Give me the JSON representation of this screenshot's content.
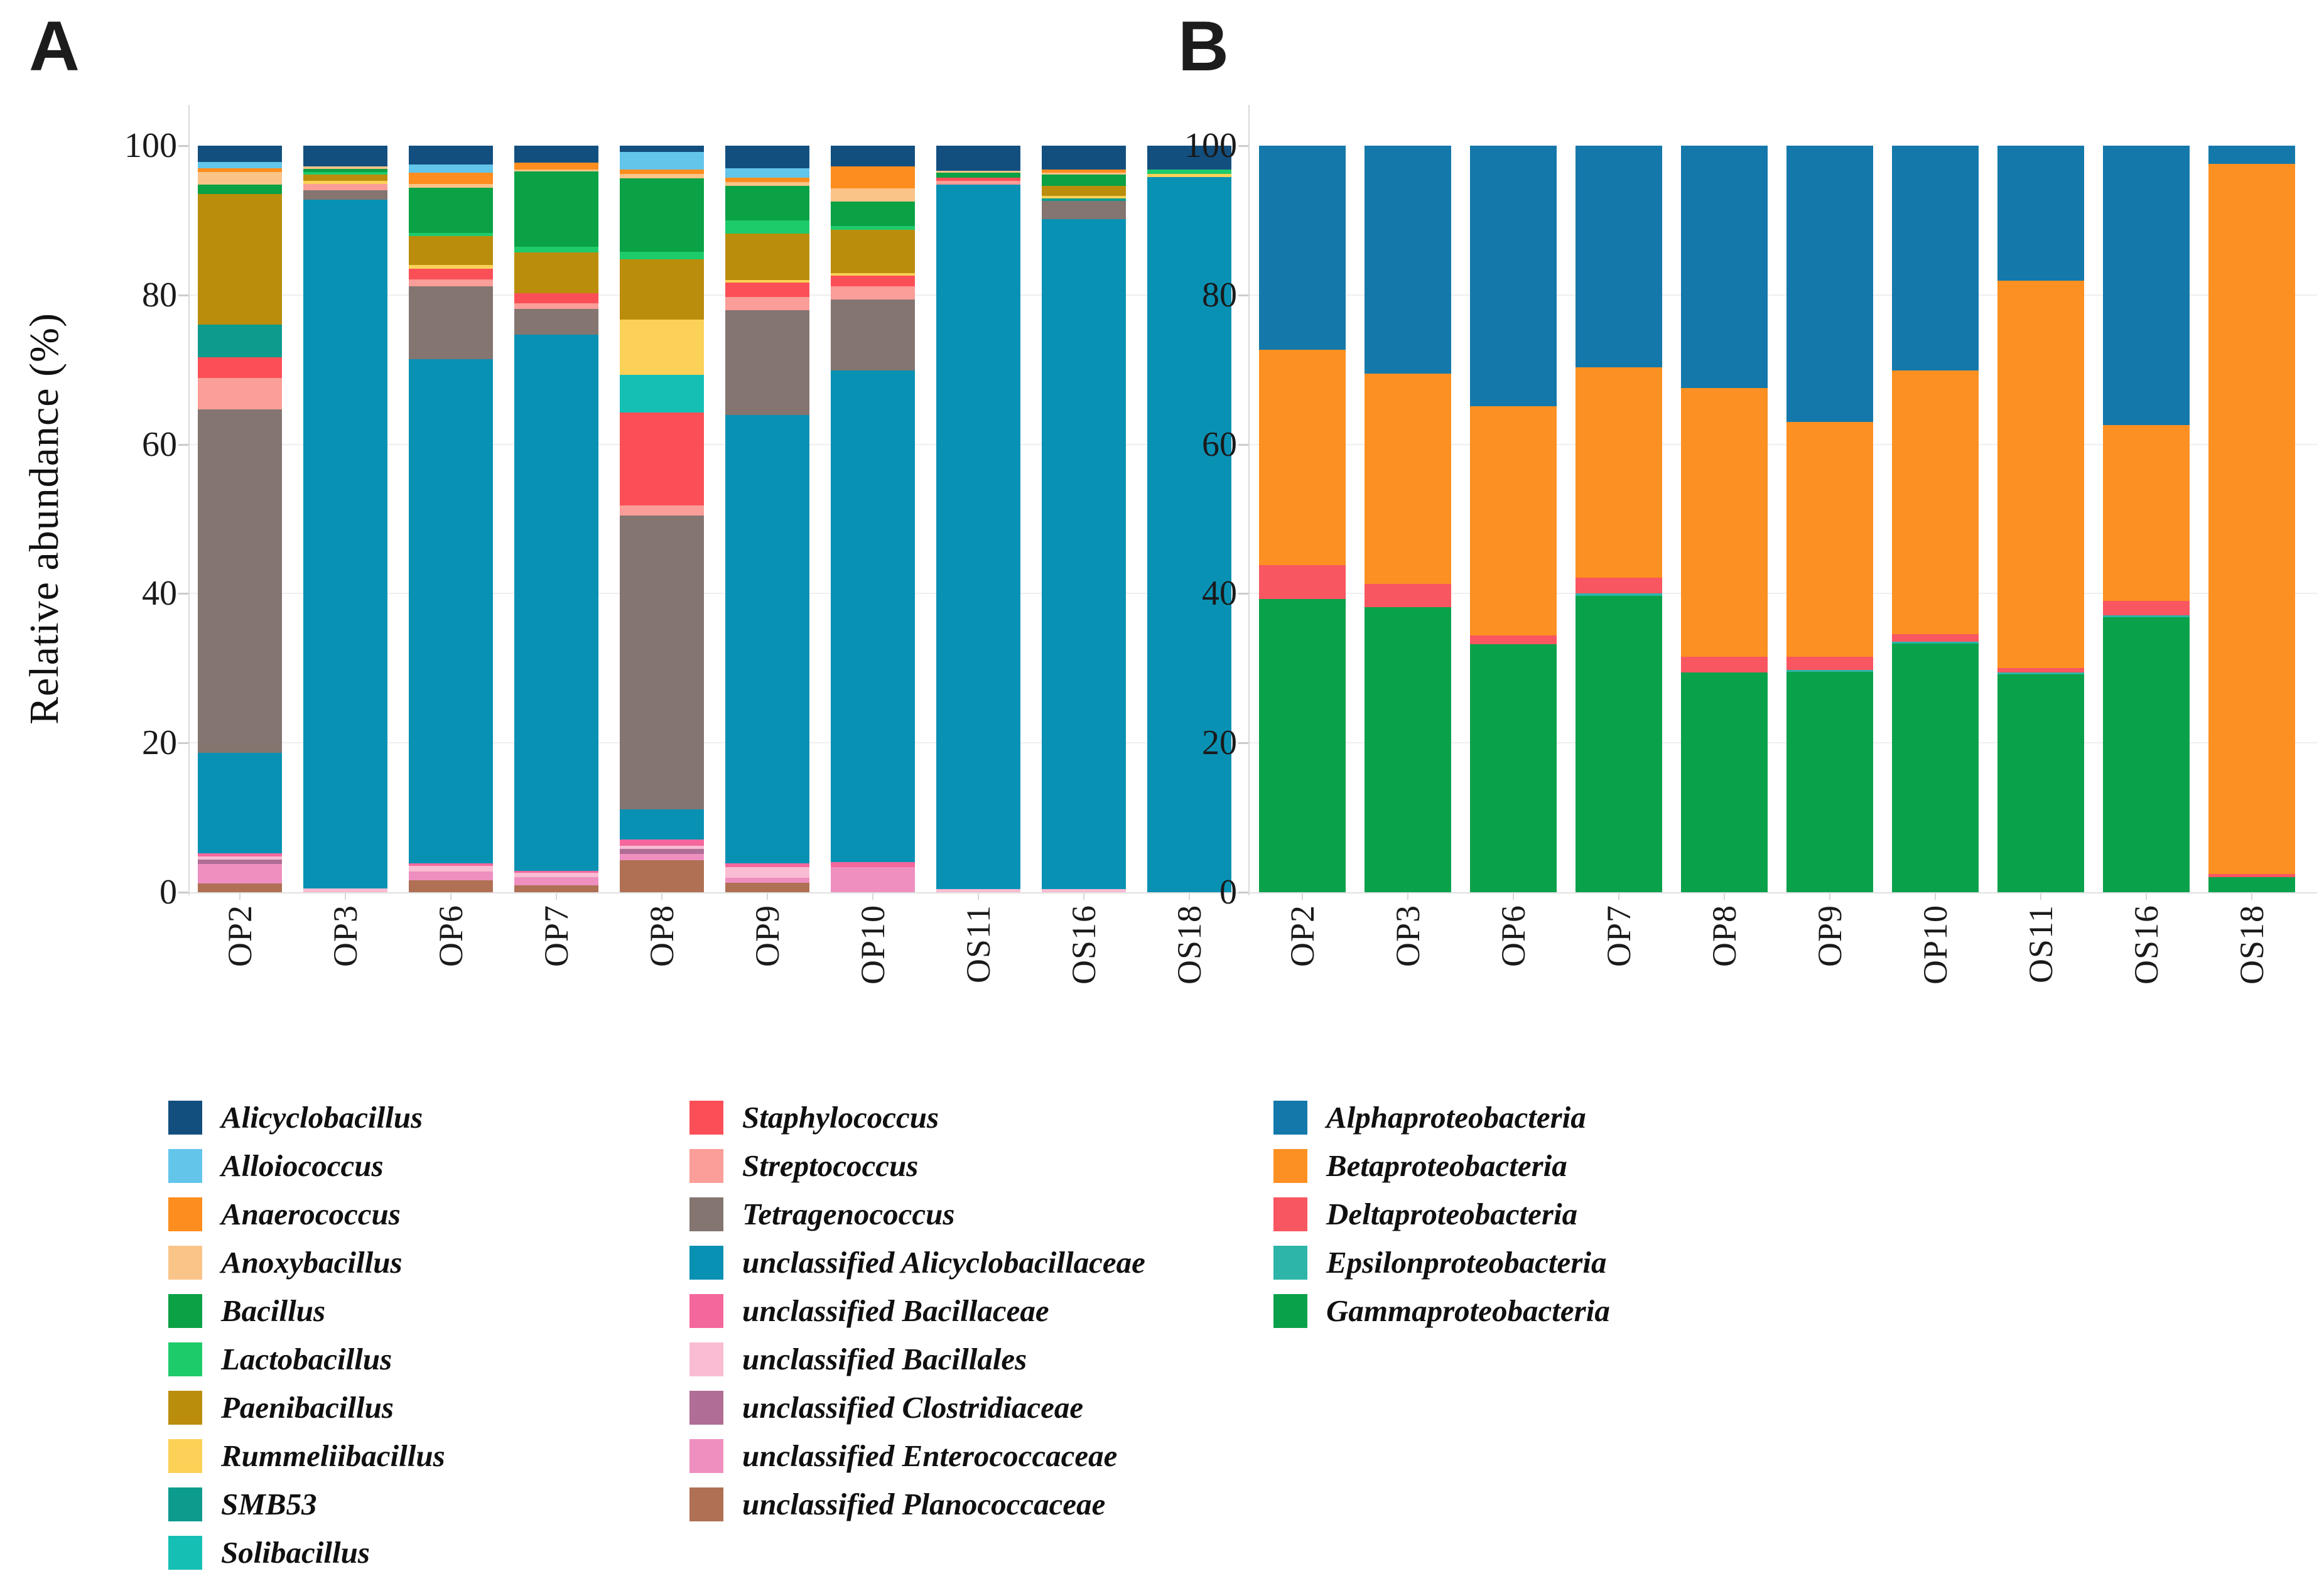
{
  "ui": {
    "panel_a_letter": "A",
    "panel_b_letter": "B",
    "y_axis_title": "Relative abundance (%)"
  },
  "chart_data": [
    {
      "type": "bar",
      "stacked": true,
      "panel": "A",
      "title": "",
      "xlabel": "",
      "ylabel": "Relative abundance (%)",
      "ylim": [
        0,
        100
      ],
      "yticks": [
        100,
        80,
        60,
        40,
        20,
        0
      ],
      "grid": "faint horizontal gridlines at 20,40,60,80",
      "legend_position": "bottom-left, two columns, italic labels",
      "stack_order": "series listed top-to-bottom in each bar",
      "categories": [
        "OP2",
        "OP3",
        "OP6",
        "OP7",
        "OP8",
        "OP9",
        "OP10",
        "OS11",
        "OS16",
        "OS18"
      ],
      "series": [
        {
          "name": "Alicyclobacillus",
          "color": "#124f7f",
          "values": [
            2.2,
            2.8,
            2.5,
            2.3,
            0.8,
            3.0,
            2.8,
            3.4,
            3.2,
            3.2
          ]
        },
        {
          "name": "Alloiococcus",
          "color": "#63c5ea",
          "values": [
            0.8,
            0,
            1.1,
            0,
            2.4,
            1.3,
            0,
            0,
            0,
            0
          ]
        },
        {
          "name": "Anaerococcus",
          "color": "#fd8d1e",
          "values": [
            0.5,
            0,
            1.5,
            0.9,
            0.6,
            0.6,
            2.9,
            0,
            0.4,
            0
          ]
        },
        {
          "name": "Anoxybacillus",
          "color": "#fac488",
          "values": [
            1.7,
            0.3,
            0.5,
            0.2,
            0.6,
            0.5,
            1.8,
            0.2,
            0.3,
            0
          ]
        },
        {
          "name": "Bacillus",
          "color": "#0ba145",
          "values": [
            1.3,
            0.4,
            6.1,
            10.1,
            9.8,
            4.6,
            3.3,
            0.7,
            1.5,
            0
          ]
        },
        {
          "name": "Lactobacillus",
          "color": "#1ecb6b",
          "values": [
            0,
            0.4,
            0.4,
            0.8,
            1.0,
            1.8,
            0.5,
            0,
            0,
            0.6
          ]
        },
        {
          "name": "Paenibacillus",
          "color": "#bb8d0c",
          "values": [
            17.5,
            0.8,
            3.9,
            5.5,
            8.1,
            6.2,
            5.8,
            0,
            1.3,
            0
          ]
        },
        {
          "name": "Rummeliibacillus",
          "color": "#fbd157",
          "values": [
            0,
            0.4,
            0.5,
            0,
            7.4,
            0.3,
            0.3,
            0,
            0.4,
            0.4
          ]
        },
        {
          "name": "SMB53",
          "color": "#0d9b8e",
          "values": [
            4.3,
            0,
            0,
            0,
            0,
            0,
            0,
            0,
            0.3,
            0
          ]
        },
        {
          "name": "Solibacillus",
          "color": "#16bfb4",
          "values": [
            0,
            0,
            0,
            0,
            5.0,
            0,
            0,
            0,
            0,
            0
          ]
        },
        {
          "name": "Staphylococcus",
          "color": "#fb4f57",
          "values": [
            2.8,
            0,
            1.4,
            1.3,
            12.5,
            2.0,
            1.4,
            0.4,
            0,
            0
          ]
        },
        {
          "name": "Streptococcus",
          "color": "#fb9d98",
          "values": [
            4.2,
            0.9,
            0.9,
            0.8,
            1.3,
            1.7,
            1.8,
            0.5,
            0,
            0
          ]
        },
        {
          "name": "Tetragenococcus",
          "color": "#847571",
          "values": [
            46.0,
            1.2,
            9.8,
            3.4,
            39.4,
            14.1,
            9.5,
            0,
            2.4,
            0
          ]
        },
        {
          "name": "unclassified Alicyclobacillaceae",
          "color": "#0991b4",
          "values": [
            13.5,
            92.3,
            67.5,
            71.8,
            4.0,
            60.0,
            65.9,
            94.4,
            89.8,
            95.8
          ]
        },
        {
          "name": "unclassified Bacillaceae",
          "color": "#f4679d",
          "values": [
            0.4,
            0,
            0.4,
            0.3,
            0.9,
            0.5,
            0.6,
            0,
            0,
            0
          ]
        },
        {
          "name": "unclassified Bacillales",
          "color": "#f9bcd2",
          "values": [
            0.4,
            0.5,
            0.7,
            0.6,
            0.4,
            1.5,
            0,
            0.4,
            0.4,
            0
          ]
        },
        {
          "name": "unclassified Clostridiaceae",
          "color": "#b06d95",
          "values": [
            0.6,
            0,
            0,
            0,
            0.7,
            0,
            0,
            0,
            0,
            0
          ]
        },
        {
          "name": "unclassified Enterococcaceae",
          "color": "#ee8fc0",
          "values": [
            2.6,
            0,
            1.2,
            1.1,
            0.8,
            0.6,
            3.4,
            0,
            0,
            0
          ]
        },
        {
          "name": "unclassified Planococcaceae",
          "color": "#af7054",
          "values": [
            1.2,
            0,
            1.6,
            0.9,
            4.3,
            1.3,
            0,
            0,
            0,
            0
          ]
        }
      ]
    },
    {
      "type": "bar",
      "stacked": true,
      "panel": "B",
      "title": "",
      "xlabel": "",
      "ylabel": "",
      "ylim": [
        0,
        100
      ],
      "yticks": [
        100,
        80,
        60,
        40,
        20,
        0
      ],
      "grid": "faint horizontal gridlines at 20,40,60,80",
      "legend_position": "bottom-right column, italic labels",
      "stack_order": "series listed top-to-bottom in each bar",
      "categories": [
        "OP2",
        "OP3",
        "OP6",
        "OP7",
        "OP8",
        "OP9",
        "OP10",
        "OS11",
        "OS16",
        "OS18"
      ],
      "series": [
        {
          "name": "Alphaproteobacteria",
          "color": "#1478aa",
          "values": [
            27.3,
            30.5,
            34.9,
            29.7,
            32.5,
            37.0,
            30.1,
            18.1,
            37.4,
            2.4
          ]
        },
        {
          "name": "Betaproteobacteria",
          "color": "#fd9022",
          "values": [
            28.9,
            28.2,
            30.7,
            28.2,
            36.0,
            31.5,
            35.3,
            51.9,
            23.6,
            95.2
          ]
        },
        {
          "name": "Deltaproteobacteria",
          "color": "#f85660",
          "values": [
            4.5,
            3.1,
            1.2,
            2.1,
            2.1,
            1.7,
            1.0,
            0.6,
            1.9,
            0.4
          ]
        },
        {
          "name": "Epsilonproteobacteria",
          "color": "#2cb5a8",
          "values": [
            0,
            0,
            0,
            0.3,
            0,
            0.3,
            0.3,
            0.2,
            0.3,
            0
          ]
        },
        {
          "name": "Gammaproteobacteria",
          "color": "#0aa14b",
          "values": [
            39.3,
            38.2,
            33.2,
            39.7,
            29.4,
            29.5,
            33.3,
            29.2,
            36.8,
            2.0
          ]
        }
      ]
    }
  ]
}
